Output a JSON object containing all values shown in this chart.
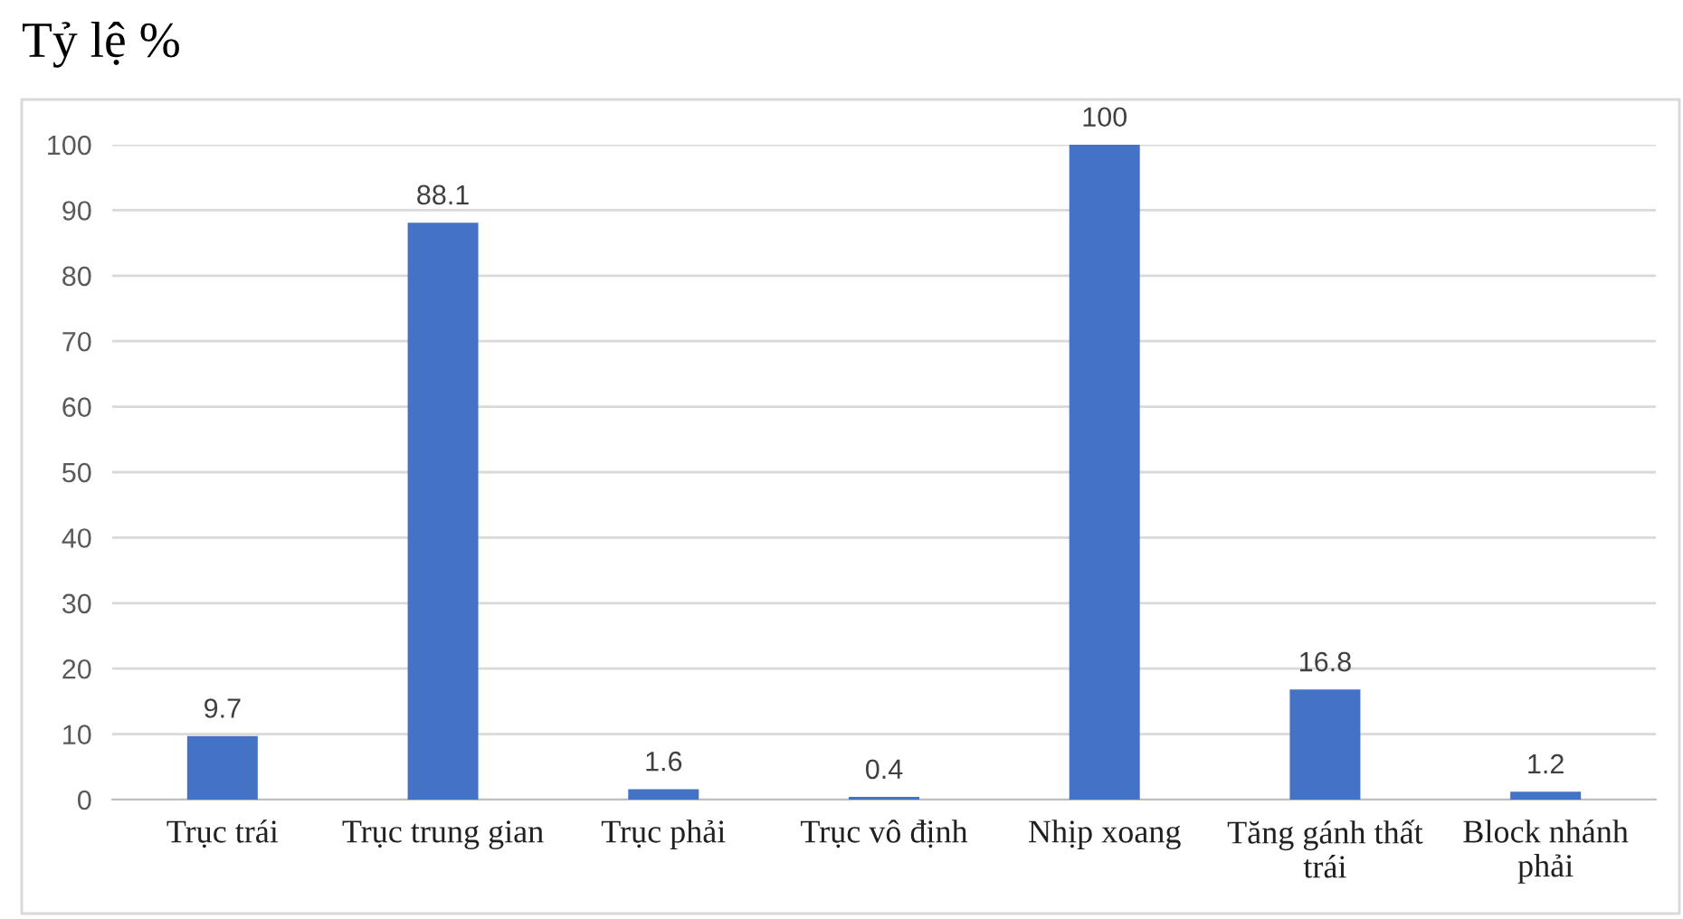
{
  "chart_data": {
    "type": "bar",
    "title": "Tỷ lệ %",
    "categories": [
      "Trục trái",
      "Trục trung gian",
      "Trục phải",
      "Trục vô định",
      "Nhịp xoang",
      "Tăng gánh thất\ntrái",
      "Block nhánh\nphải"
    ],
    "values": [
      9.7,
      88.1,
      1.6,
      0.4,
      100,
      16.8,
      1.2
    ],
    "color": "#4472c4",
    "ylim": [
      0,
      100
    ],
    "yticks": [
      0,
      10,
      20,
      30,
      40,
      50,
      60,
      70,
      80,
      90,
      100
    ],
    "grid": "y",
    "data_labels": true
  }
}
